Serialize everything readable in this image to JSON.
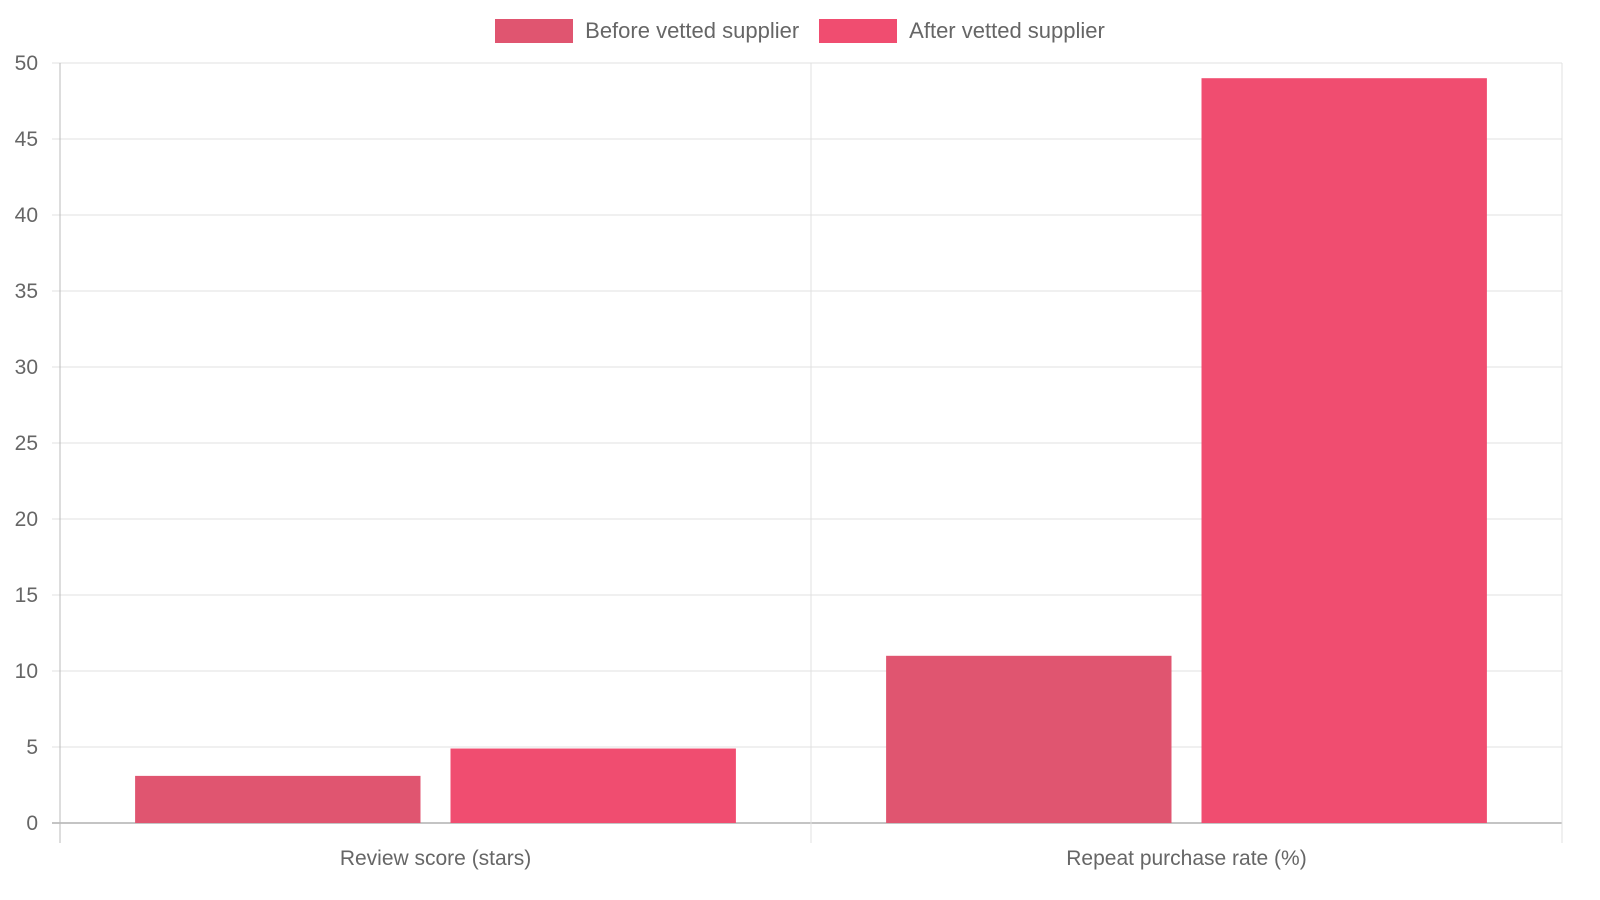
{
  "chart_data": {
    "type": "bar",
    "categories": [
      "Review score (stars)",
      "Repeat purchase rate (%)"
    ],
    "series": [
      {
        "name": "Before vetted supplier",
        "values": [
          3.1,
          11
        ],
        "color": "#e05570"
      },
      {
        "name": "After vetted supplier",
        "values": [
          4.9,
          49
        ],
        "color": "#f04d70"
      }
    ],
    "title": "",
    "xlabel": "",
    "ylabel": "",
    "ylim": [
      0,
      50
    ],
    "yticks": [
      0,
      5,
      10,
      15,
      20,
      25,
      30,
      35,
      40,
      45,
      50
    ],
    "grid": true,
    "legend_position": "top-center"
  },
  "colors": {
    "grid": "#e0e0e0",
    "axis": "#bbbbbb",
    "text": "#666666"
  }
}
